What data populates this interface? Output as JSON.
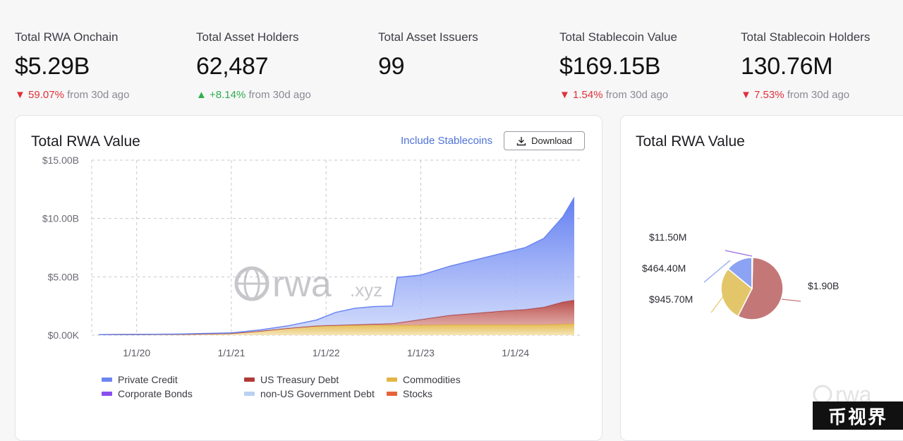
{
  "stats": [
    {
      "label": "Total RWA Onchain",
      "value": "$5.29B",
      "arrow": "▼",
      "change": "59.07%",
      "suffix": "from 30d ago",
      "dir": "down"
    },
    {
      "label": "Total Asset Holders",
      "value": "62,487",
      "arrow": "▲",
      "change": "+8.14%",
      "suffix": "from 30d ago",
      "dir": "up"
    },
    {
      "label": "Total Asset Issuers",
      "value": "99",
      "arrow": "",
      "change": "",
      "suffix": "",
      "dir": ""
    },
    {
      "label": "Total Stablecoin Value",
      "value": "$169.15B",
      "arrow": "▼",
      "change": "1.54%",
      "suffix": "from 30d ago",
      "dir": "down"
    },
    {
      "label": "Total Stablecoin Holders",
      "value": "130.76M",
      "arrow": "▼",
      "change": "7.53%",
      "suffix": "from 30d ago",
      "dir": "down"
    }
  ],
  "main_card": {
    "title": "Total RWA Value",
    "include_label": "Include Stablecoins",
    "download_label": "Download",
    "watermark": "rwa",
    "watermark_suffix": ".xyz"
  },
  "side_card": {
    "title": "Total RWA Value",
    "watermark": "rwa",
    "watermark_suffix": ".xyz"
  },
  "brand_badge": "币视界",
  "colors": {
    "private_credit": "#6b86f2",
    "us_treasury": "#b03a36",
    "commodities": "#e2b646",
    "corporate_bonds": "#8a4df0",
    "non_us_gov": "#b9d1f2",
    "stocks": "#e8623a"
  },
  "chart_data": [
    {
      "type": "area",
      "title": "Total RWA Value",
      "x_ticks": [
        "1/1/20",
        "1/1/21",
        "1/1/22",
        "1/1/23",
        "1/1/24"
      ],
      "y_ticks": [
        "$0.00K",
        "$5.00B",
        "$10.00B",
        "$15.00B"
      ],
      "ylim": [
        0,
        15
      ],
      "unit": "B",
      "stacked": true,
      "grid": true,
      "x": [
        2019.6,
        2020.0,
        2020.5,
        2021.0,
        2021.3,
        2021.6,
        2021.9,
        2022.1,
        2022.3,
        2022.5,
        2022.7,
        2022.75,
        2023.0,
        2023.3,
        2023.6,
        2023.9,
        2024.1,
        2024.3,
        2024.5,
        2024.62
      ],
      "series": [
        {
          "name": "Commodities",
          "color": "#e2b646",
          "values": [
            0.05,
            0.06,
            0.08,
            0.15,
            0.35,
            0.6,
            0.8,
            0.85,
            0.85,
            0.85,
            0.85,
            0.85,
            0.85,
            0.9,
            0.9,
            0.9,
            0.9,
            0.9,
            0.95,
            1.0
          ]
        },
        {
          "name": "US Treasury Debt",
          "color": "#b03a36",
          "values": [
            0,
            0,
            0,
            0,
            0,
            0,
            0,
            0,
            0.05,
            0.1,
            0.15,
            0.2,
            0.5,
            0.8,
            1.0,
            1.2,
            1.3,
            1.5,
            1.9,
            2.0
          ]
        },
        {
          "name": "Private Credit",
          "color": "#6b86f2",
          "values": [
            0,
            0,
            0.02,
            0.05,
            0.1,
            0.2,
            0.5,
            1.1,
            1.4,
            1.5,
            1.5,
            3.9,
            3.8,
            4.2,
            4.6,
            5.0,
            5.3,
            5.9,
            7.3,
            8.8
          ]
        },
        {
          "name": "Corporate Bonds",
          "color": "#8a4df0",
          "values": [
            0,
            0,
            0,
            0,
            0,
            0,
            0,
            0,
            0,
            0,
            0,
            0,
            0,
            0,
            0,
            0,
            0,
            0,
            0,
            0
          ]
        },
        {
          "name": "non-US Government Debt",
          "color": "#b9d1f2",
          "values": [
            0,
            0,
            0,
            0,
            0,
            0,
            0,
            0,
            0,
            0,
            0,
            0,
            0,
            0,
            0,
            0,
            0,
            0,
            0,
            0
          ]
        },
        {
          "name": "Stocks",
          "color": "#e8623a",
          "values": [
            0,
            0,
            0,
            0,
            0,
            0,
            0,
            0,
            0,
            0,
            0,
            0,
            0,
            0,
            0,
            0,
            0,
            0,
            0,
            0
          ]
        }
      ],
      "legend": [
        {
          "name": "Private Credit",
          "color": "#6b86f2"
        },
        {
          "name": "US Treasury Debt",
          "color": "#b03a36"
        },
        {
          "name": "Commodities",
          "color": "#e2b646"
        },
        {
          "name": "Corporate Bonds",
          "color": "#8a4df0"
        },
        {
          "name": "non-US Government Debt",
          "color": "#b9d1f2"
        },
        {
          "name": "Stocks",
          "color": "#e8623a"
        }
      ],
      "legend_position": "bottom"
    },
    {
      "type": "pie",
      "title": "Total RWA Value",
      "slices": [
        {
          "label": "$1.90B",
          "value": 1900,
          "color": "#c47777"
        },
        {
          "label": "$945.70M",
          "value": 945.7,
          "color": "#e4c66a"
        },
        {
          "label": "$464.40M",
          "value": 464.4,
          "color": "#8ba3f2"
        },
        {
          "label": "$11.50M",
          "value": 11.5,
          "color": "#9b69dd"
        }
      ]
    }
  ]
}
